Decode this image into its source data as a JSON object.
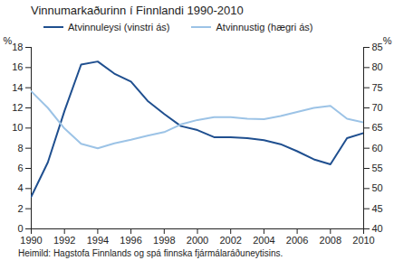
{
  "chart_data": {
    "type": "line",
    "title": "Vinnumarkaðurinn í Finnlandi 1990-2010",
    "caption": "Heimild: Hagstofa Finnlands og spá finnska fjármálaráðuneytisins.",
    "x": [
      1990,
      1991,
      1992,
      1993,
      1994,
      1995,
      1996,
      1997,
      1998,
      1999,
      2000,
      2001,
      2002,
      2003,
      2004,
      2005,
      2006,
      2007,
      2008,
      2009,
      2010
    ],
    "xlim": [
      1990,
      2010
    ],
    "xticks": [
      1990,
      1992,
      1994,
      1996,
      1998,
      2000,
      2002,
      2004,
      2006,
      2008,
      2010
    ],
    "ylim": [
      0,
      18
    ],
    "yticks": [
      0,
      2,
      4,
      6,
      8,
      10,
      12,
      14,
      16,
      18
    ],
    "ylabel": "%",
    "y2lim": [
      40,
      85
    ],
    "y2ticks": [
      40,
      45,
      50,
      55,
      60,
      65,
      70,
      75,
      80,
      85
    ],
    "y2label": "%",
    "legend": "top",
    "series": [
      {
        "name": "Atvinnuleysi (vinstri ás)",
        "color": "#1f4f8f",
        "values": [
          3.2,
          6.6,
          11.7,
          16.3,
          16.6,
          15.4,
          14.6,
          12.7,
          11.4,
          10.2,
          9.8,
          9.1,
          9.1,
          9.0,
          8.8,
          8.4,
          7.7,
          6.9,
          6.4,
          9.0,
          9.5
        ]
      },
      {
        "name": "Atvinnustig (hægri ás)",
        "color": "#9cc3e6",
        "axis": "y2",
        "values": [
          74.1,
          70.0,
          64.9,
          61.1,
          60.0,
          61.2,
          62.1,
          63.1,
          64.0,
          65.9,
          67.0,
          67.7,
          67.7,
          67.3,
          67.2,
          68.0,
          69.0,
          70.0,
          70.5,
          67.3,
          66.4
        ]
      }
    ]
  }
}
